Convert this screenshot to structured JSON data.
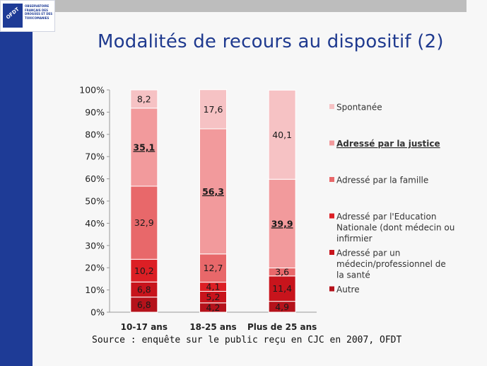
{
  "title": "Modalités de recours au dispositif (2)",
  "logo": {
    "emblem": "OFDT",
    "lines": [
      "OBSERVATOIRE",
      "FRANÇAIS DES",
      "DROGUES ET DES",
      "TOXICOMANIES"
    ]
  },
  "source": "Source : enquête sur le public reçu en CJC en 2007, OFDT",
  "chart_data": {
    "type": "bar",
    "stacked": true,
    "ylim": [
      0,
      100
    ],
    "yticks": [
      "0%",
      "10%",
      "20%",
      "30%",
      "40%",
      "50%",
      "60%",
      "70%",
      "80%",
      "90%",
      "100%"
    ],
    "categories": [
      "10-17 ans",
      "18-25 ans",
      "Plus de 25 ans"
    ],
    "series": [
      {
        "name": "Autre",
        "color": "#b5121b",
        "values": [
          6.8,
          4.2,
          4.9
        ],
        "labels": [
          "6,8",
          "4,2",
          "4,9"
        ],
        "bold": [
          false,
          false,
          false
        ]
      },
      {
        "name": "Adressé par un médecin/professionnel de la santé",
        "color": "#c8141c",
        "values": [
          6.8,
          5.2,
          11.4
        ],
        "labels": [
          "6,8",
          "5,2",
          "11,4"
        ],
        "bold": [
          false,
          false,
          false
        ]
      },
      {
        "name": "Adressé par l'Education Nationale (dont médecin ou infirmier",
        "color": "#dc1f25",
        "values": [
          10.2,
          4.1,
          0
        ],
        "labels": [
          "10,2",
          "4,1",
          ""
        ],
        "bold": [
          false,
          false,
          false
        ]
      },
      {
        "name": "Adressé par la famille",
        "color": "#e8686a",
        "values": [
          32.9,
          12.7,
          3.6
        ],
        "labels": [
          "32,9",
          "12,7",
          "3,6"
        ],
        "bold": [
          false,
          false,
          false
        ]
      },
      {
        "name": "Adressé par la justice",
        "color": "#f29a9c",
        "values": [
          35.1,
          56.3,
          39.9
        ],
        "labels": [
          "35,1",
          "56,3",
          "39,9"
        ],
        "bold": [
          true,
          true,
          true
        ]
      },
      {
        "name": "Spontanée",
        "color": "#f6c2c4",
        "values": [
          8.2,
          17.6,
          40.1
        ],
        "labels": [
          "8,2",
          "17,6",
          "40,1"
        ],
        "bold": [
          false,
          false,
          false
        ]
      }
    ],
    "legend": [
      {
        "lines": [
          "Spontanée"
        ],
        "color": "#f6c2c4",
        "bold": false
      },
      {
        "lines": [
          "Adressé par la justice"
        ],
        "color": "#f29a9c",
        "bold": true
      },
      {
        "lines": [
          "Adressé par la famille"
        ],
        "color": "#e8686a",
        "bold": false
      },
      {
        "lines": [
          "Adressé par l'Education",
          "Nationale (dont médecin ou",
          "infirmier"
        ],
        "color": "#dc1f25",
        "bold": false
      },
      {
        "lines": [
          "Adressé par un",
          "médecin/professionnel de",
          "la santé"
        ],
        "color": "#c8141c",
        "bold": false
      },
      {
        "lines": [
          "Autre"
        ],
        "color": "#b5121b",
        "bold": false
      }
    ],
    "legend_position": "right"
  }
}
